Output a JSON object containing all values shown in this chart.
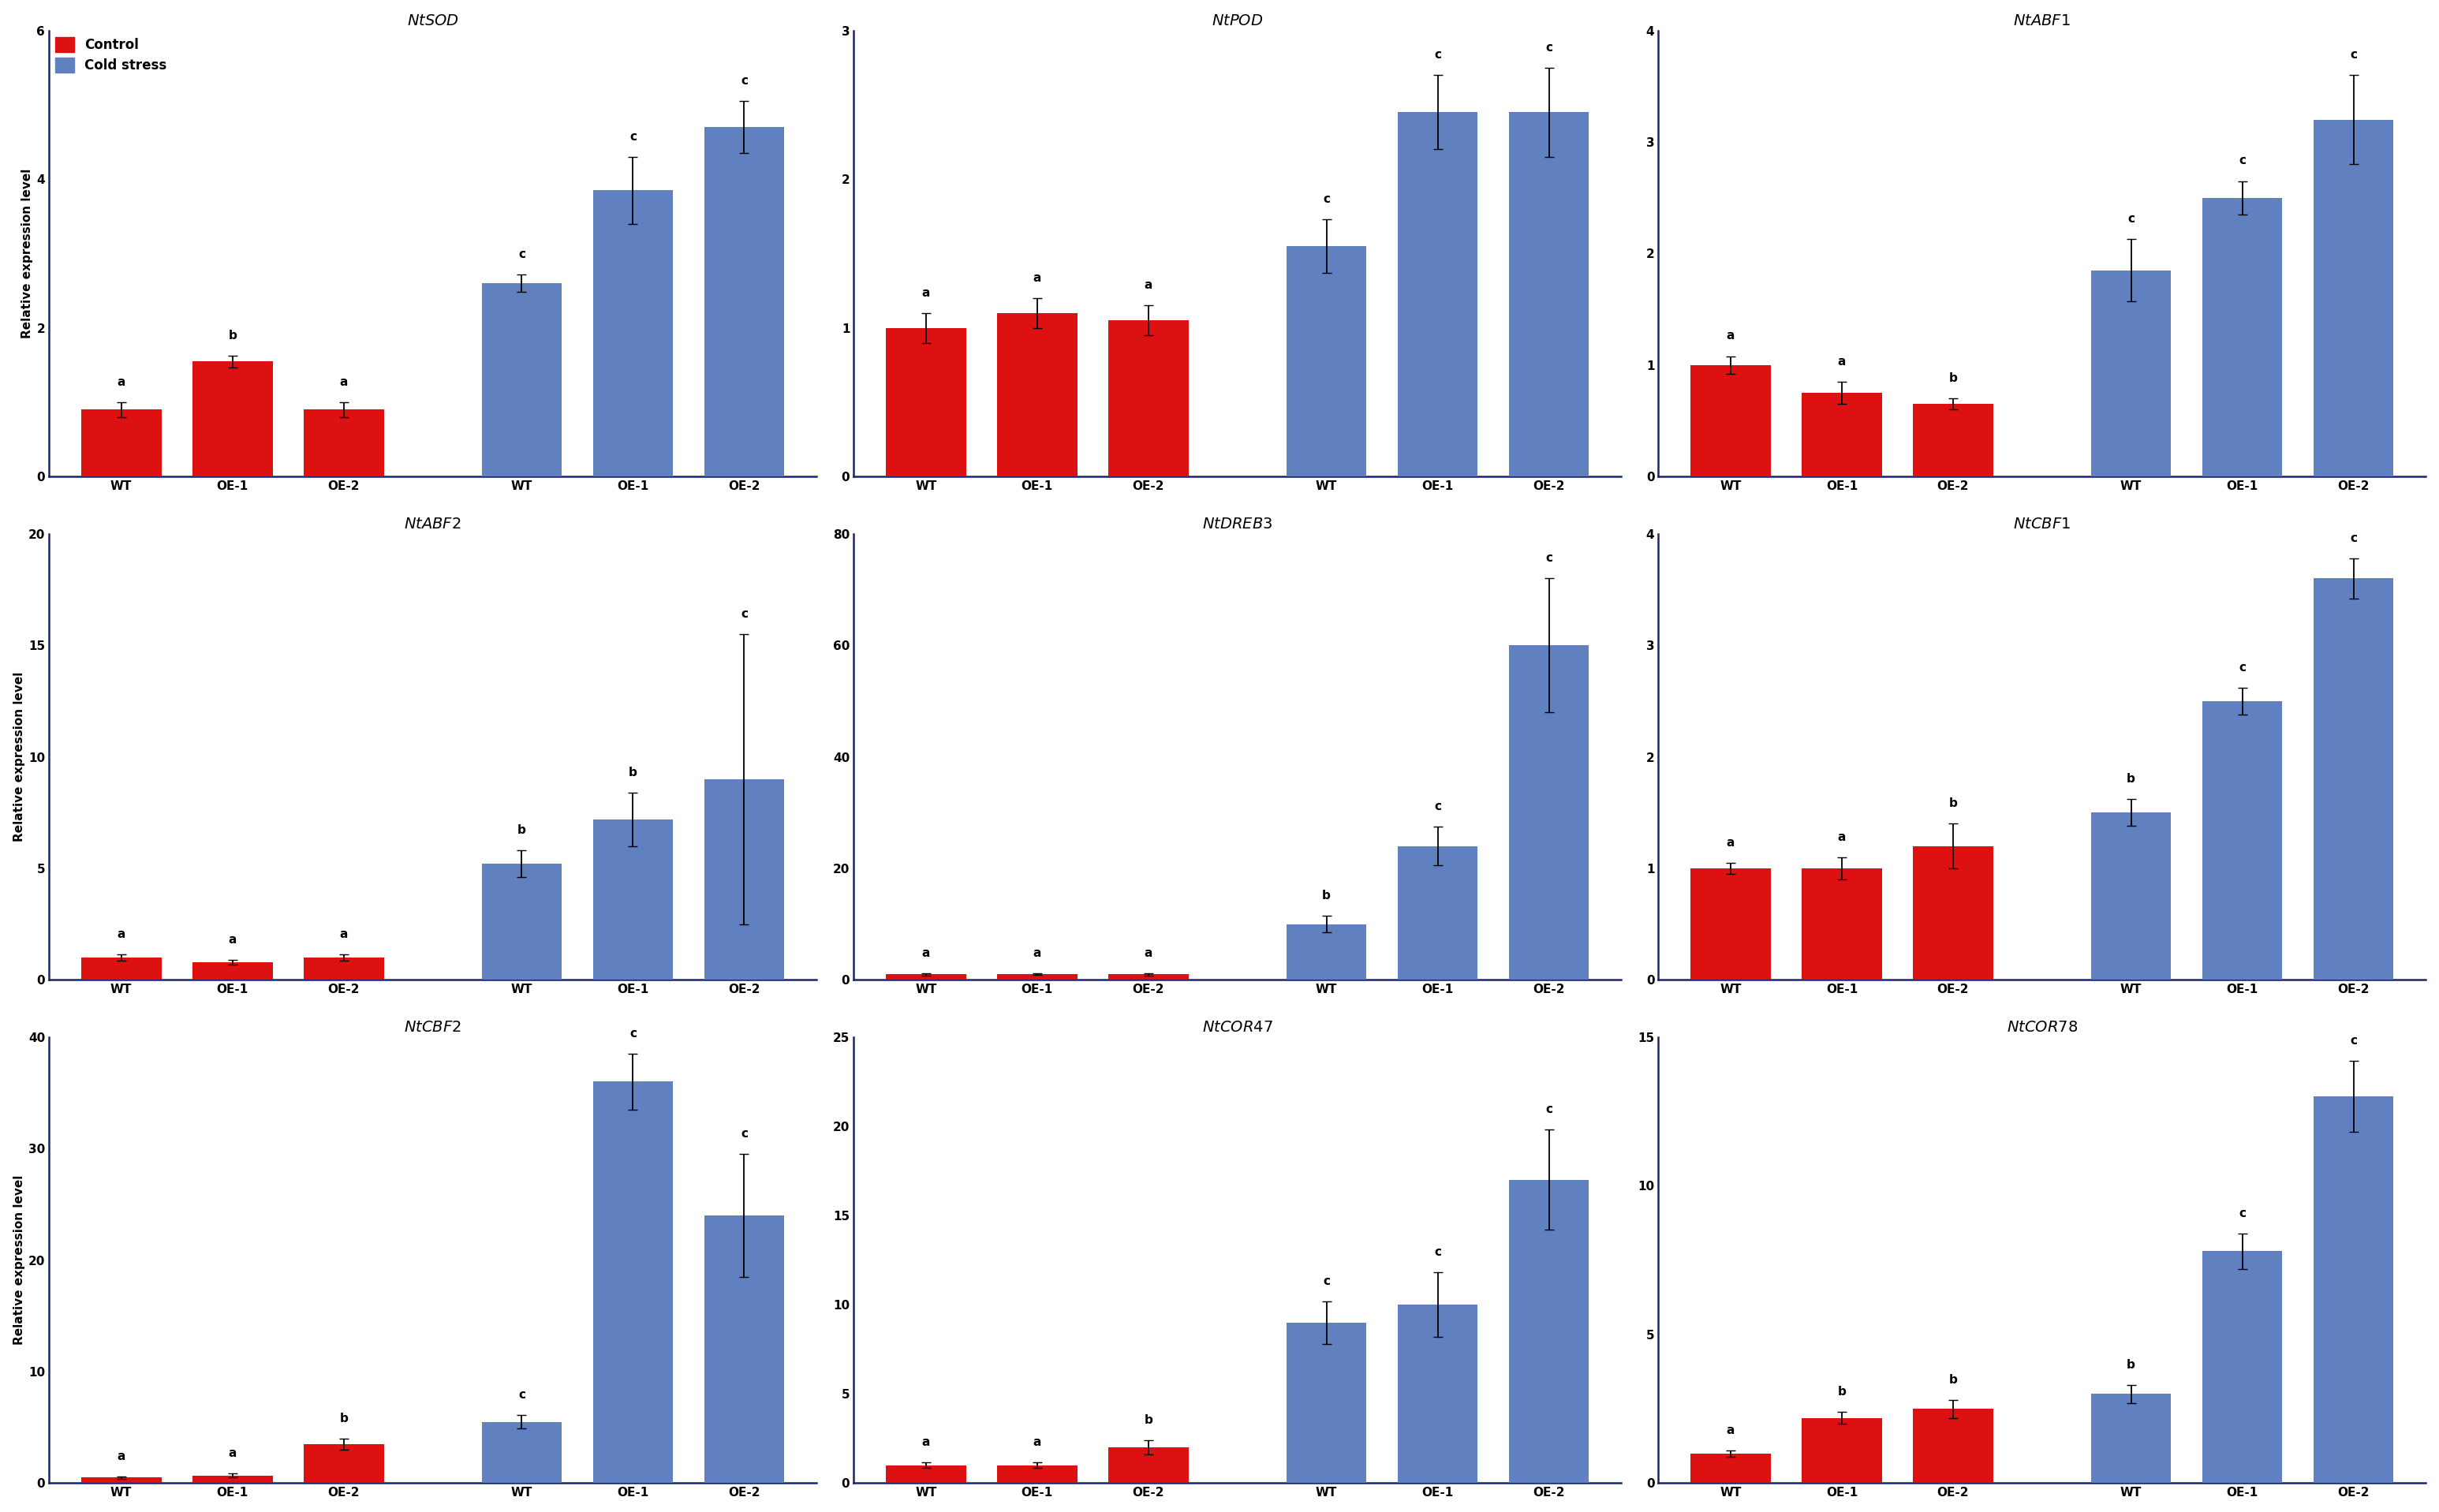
{
  "panels": [
    {
      "title": "NtSOD",
      "ylim": [
        0,
        6
      ],
      "yticks": [
        0,
        2,
        4,
        6
      ],
      "control_values": [
        0.9,
        1.55,
        0.9
      ],
      "cold_values": [
        2.6,
        3.85,
        4.7
      ],
      "control_err": [
        0.1,
        0.08,
        0.1
      ],
      "cold_err": [
        0.12,
        0.45,
        0.35
      ],
      "control_labels": [
        "a",
        "b",
        "a"
      ],
      "cold_labels": [
        "c",
        "c",
        "c"
      ],
      "show_legend": true,
      "row": 0,
      "col": 0
    },
    {
      "title": "NtPOD",
      "ylim": [
        0,
        3
      ],
      "yticks": [
        0,
        1,
        2,
        3
      ],
      "control_values": [
        1.0,
        1.1,
        1.05
      ],
      "cold_values": [
        1.55,
        2.45,
        2.45
      ],
      "control_err": [
        0.1,
        0.1,
        0.1
      ],
      "cold_err": [
        0.18,
        0.25,
        0.3
      ],
      "control_labels": [
        "a",
        "a",
        "a"
      ],
      "cold_labels": [
        "c",
        "c",
        "c"
      ],
      "show_legend": false,
      "row": 0,
      "col": 1
    },
    {
      "title": "NtABF1",
      "ylim": [
        0,
        4
      ],
      "yticks": [
        0,
        1,
        2,
        3,
        4
      ],
      "control_values": [
        1.0,
        0.75,
        0.65
      ],
      "cold_values": [
        1.85,
        2.5,
        3.2
      ],
      "control_err": [
        0.08,
        0.1,
        0.05
      ],
      "cold_err": [
        0.28,
        0.15,
        0.4
      ],
      "control_labels": [
        "a",
        "a",
        "b"
      ],
      "cold_labels": [
        "c",
        "c",
        "c"
      ],
      "show_legend": false,
      "row": 0,
      "col": 2
    },
    {
      "title": "NtABF2",
      "ylim": [
        0,
        20
      ],
      "yticks": [
        0,
        5,
        10,
        15,
        20
      ],
      "control_values": [
        1.0,
        0.8,
        1.0
      ],
      "cold_values": [
        5.2,
        7.2,
        9.0
      ],
      "control_err": [
        0.15,
        0.1,
        0.15
      ],
      "cold_err": [
        0.6,
        1.2,
        6.5
      ],
      "control_labels": [
        "a",
        "a",
        "a"
      ],
      "cold_labels": [
        "b",
        "b",
        "c"
      ],
      "show_legend": false,
      "row": 1,
      "col": 0
    },
    {
      "title": "NtDREB3",
      "ylim": [
        0,
        80
      ],
      "yticks": [
        0,
        20,
        40,
        60,
        80
      ],
      "control_values": [
        1.0,
        1.0,
        1.0
      ],
      "cold_values": [
        10.0,
        24.0,
        60.0
      ],
      "control_err": [
        0.2,
        0.15,
        0.2
      ],
      "cold_err": [
        1.5,
        3.5,
        12.0
      ],
      "control_labels": [
        "a",
        "a",
        "a"
      ],
      "cold_labels": [
        "b",
        "c",
        "c"
      ],
      "show_legend": false,
      "row": 1,
      "col": 1
    },
    {
      "title": "NtCBF1",
      "ylim": [
        0,
        4
      ],
      "yticks": [
        0,
        1,
        2,
        3,
        4
      ],
      "control_values": [
        1.0,
        1.0,
        1.2
      ],
      "cold_values": [
        1.5,
        2.5,
        3.6
      ],
      "control_err": [
        0.05,
        0.1,
        0.2
      ],
      "cold_err": [
        0.12,
        0.12,
        0.18
      ],
      "control_labels": [
        "a",
        "a",
        "b"
      ],
      "cold_labels": [
        "b",
        "c",
        "c"
      ],
      "show_legend": false,
      "row": 1,
      "col": 2
    },
    {
      "title": "NtCBF2",
      "ylim": [
        0,
        40
      ],
      "yticks": [
        0,
        10,
        20,
        30,
        40
      ],
      "control_values": [
        0.5,
        0.7,
        3.5
      ],
      "cold_values": [
        5.5,
        36.0,
        24.0
      ],
      "control_err": [
        0.1,
        0.15,
        0.5
      ],
      "cold_err": [
        0.6,
        2.5,
        5.5
      ],
      "control_labels": [
        "a",
        "a",
        "b"
      ],
      "cold_labels": [
        "c",
        "c",
        "c"
      ],
      "show_legend": false,
      "row": 2,
      "col": 0
    },
    {
      "title": "NtCOR47",
      "ylim": [
        0,
        25
      ],
      "yticks": [
        0,
        5,
        10,
        15,
        20,
        25
      ],
      "control_values": [
        1.0,
        1.0,
        2.0
      ],
      "cold_values": [
        9.0,
        10.0,
        17.0
      ],
      "control_err": [
        0.15,
        0.15,
        0.4
      ],
      "cold_err": [
        1.2,
        1.8,
        2.8
      ],
      "control_labels": [
        "a",
        "a",
        "b"
      ],
      "cold_labels": [
        "c",
        "c",
        "c"
      ],
      "show_legend": false,
      "row": 2,
      "col": 1
    },
    {
      "title": "NtCOR78",
      "ylim": [
        0,
        15
      ],
      "yticks": [
        0,
        5,
        10,
        15
      ],
      "control_values": [
        1.0,
        2.2,
        2.5
      ],
      "cold_values": [
        3.0,
        7.8,
        13.0
      ],
      "control_err": [
        0.1,
        0.2,
        0.3
      ],
      "cold_err": [
        0.3,
        0.6,
        1.2
      ],
      "control_labels": [
        "a",
        "b",
        "b"
      ],
      "cold_labels": [
        "b",
        "c",
        "c"
      ],
      "show_legend": false,
      "row": 2,
      "col": 2
    }
  ],
  "control_color": "#dd1111",
  "cold_color": "#6080c0",
  "bar_width": 0.72,
  "ylabel": "Relative expression level",
  "background_color": "#ffffff",
  "title_fontsize": 14,
  "label_fontsize": 11,
  "tick_fontsize": 11,
  "legend_fontsize": 12,
  "annot_fontsize": 11,
  "xlabel_items": [
    "WT",
    "OE-1",
    "OE-2"
  ],
  "spine_color": "#1a2575"
}
